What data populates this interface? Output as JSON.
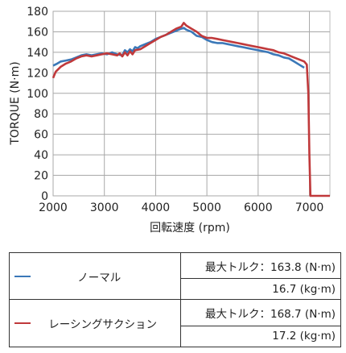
{
  "chart_data": {
    "type": "line",
    "xlabel": "回転速度 (rpm)",
    "ylabel": "TORQUE (N·m)",
    "xlim": [
      2000,
      7400
    ],
    "ylim": [
      0,
      180
    ],
    "x_ticks": [
      2000,
      3000,
      4000,
      5000,
      6000,
      7000
    ],
    "y_ticks": [
      0,
      20,
      40,
      60,
      80,
      100,
      120,
      140,
      160,
      180
    ],
    "grid": true,
    "series": [
      {
        "name": "ノーマル",
        "color": "#3b78b8",
        "x": [
          2000,
          2080,
          2150,
          2250,
          2350,
          2450,
          2550,
          2650,
          2750,
          2850,
          2950,
          3050,
          3150,
          3250,
          3350,
          3400,
          3450,
          3500,
          3550,
          3600,
          3650,
          3700,
          3800,
          3900,
          4000,
          4100,
          4200,
          4300,
          4400,
          4500,
          4550,
          4600,
          4700,
          4800,
          4900,
          5000,
          5100,
          5200,
          5300,
          5400,
          5500,
          5600,
          5700,
          5800,
          5900,
          6000,
          6100,
          6200,
          6300,
          6400,
          6500,
          6600,
          6700,
          6800,
          6900
        ],
        "y": [
          127,
          129,
          131,
          132,
          133,
          135,
          137,
          138,
          137,
          138,
          139,
          138,
          140,
          138,
          137,
          142,
          140,
          143,
          141,
          145,
          144,
          146,
          148,
          150,
          153,
          155,
          157,
          159,
          161,
          163,
          163.8,
          162,
          160,
          156,
          155,
          152,
          150,
          149,
          149,
          148,
          147,
          146,
          145,
          144,
          143,
          142,
          141,
          140,
          138,
          137,
          135,
          134,
          131,
          128,
          125
        ]
      },
      {
        "name": "レーシングサクション",
        "color": "#c0393b",
        "x": [
          2000,
          2050,
          2150,
          2250,
          2350,
          2450,
          2550,
          2650,
          2750,
          2850,
          2950,
          3050,
          3150,
          3250,
          3300,
          3350,
          3400,
          3450,
          3500,
          3550,
          3600,
          3700,
          3800,
          3900,
          4000,
          4100,
          4200,
          4300,
          4400,
          4500,
          4550,
          4600,
          4700,
          4800,
          4900,
          5000,
          5100,
          5200,
          5300,
          5400,
          5500,
          5600,
          5700,
          5800,
          5900,
          6000,
          6100,
          6200,
          6300,
          6400,
          6500,
          6600,
          6700,
          6800,
          6900,
          6950,
          6980,
          7000,
          7020,
          7400
        ],
        "y": [
          115,
          121,
          126,
          129,
          131,
          134,
          136,
          137,
          136,
          137,
          138,
          139,
          138,
          137,
          139,
          136,
          140,
          137,
          141,
          138,
          142,
          143,
          146,
          149,
          152,
          155,
          157,
          160,
          163,
          165,
          168.7,
          166,
          163,
          160,
          156,
          154,
          154,
          153,
          152,
          151,
          150,
          149,
          148,
          147,
          146,
          145,
          144,
          143,
          142,
          140,
          139,
          137,
          135,
          133,
          131,
          128,
          100,
          40,
          0,
          0
        ]
      }
    ]
  },
  "legend_table": {
    "rows": [
      {
        "name": "ノーマル",
        "color": "#3b78b8",
        "max_torque_nm": "最大トルク：163.8 (N·m)",
        "max_torque_kgm": "16.7 (kg·m)"
      },
      {
        "name": "レーシングサクション",
        "color": "#c0393b",
        "max_torque_nm": "最大トルク：168.7 (N·m)",
        "max_torque_kgm": "17.2 (kg·m)"
      }
    ]
  }
}
